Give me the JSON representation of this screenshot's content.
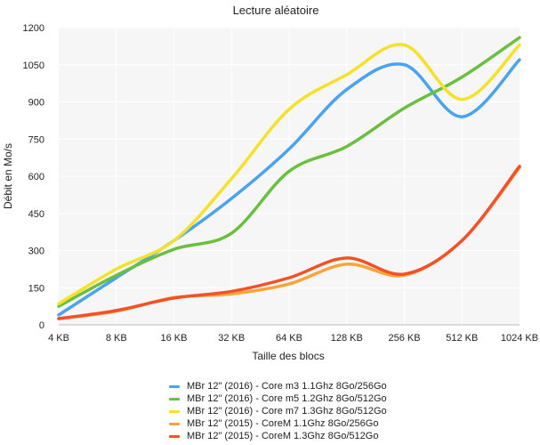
{
  "chart_data": {
    "type": "line",
    "title": "Lecture aléatoire",
    "xlabel": "Taille des blocs",
    "ylabel": "Débit en Mo/s",
    "categories": [
      "4 KB",
      "8 KB",
      "16 KB",
      "32 KB",
      "64 KB",
      "128 KB",
      "256 KB",
      "512 KB",
      "1024 KB"
    ],
    "ylim": [
      0,
      1200
    ],
    "yticks": [
      "0",
      "150",
      "300",
      "450",
      "600",
      "750",
      "900",
      "1050",
      "1200"
    ],
    "grid": true,
    "legend_position": "bottom",
    "series": [
      {
        "name": "MBr 12\" (2016) - Core m3 1.1Ghz  8Go/256Go",
        "color": "#4aa3ee",
        "values": [
          40,
          190,
          340,
          510,
          710,
          950,
          1050,
          840,
          1070
        ]
      },
      {
        "name": "MBr 12\" (2016) - Core m5 1.2Ghz  8Go/512Go",
        "color": "#6ac03e",
        "values": [
          75,
          200,
          305,
          370,
          620,
          720,
          875,
          1000,
          1160
        ]
      },
      {
        "name": "MBr 12\" (2016) - Core m7 1.3Ghz  8Go/512Go",
        "color": "#f5e12c",
        "values": [
          85,
          225,
          340,
          590,
          870,
          1010,
          1130,
          910,
          1130
        ]
      },
      {
        "name": "MBr 12\" (2015) - CoreM 1.1Ghz 8Go/256Go",
        "color": "#f7a43a",
        "values": [
          25,
          55,
          110,
          125,
          165,
          245,
          200,
          340,
          635
        ]
      },
      {
        "name": "MBr 12\" (2015) - CoreM 1.3Ghz 8Go/512Go",
        "color": "#f2522a",
        "values": [
          25,
          58,
          108,
          135,
          190,
          270,
          205,
          340,
          640
        ]
      }
    ]
  }
}
